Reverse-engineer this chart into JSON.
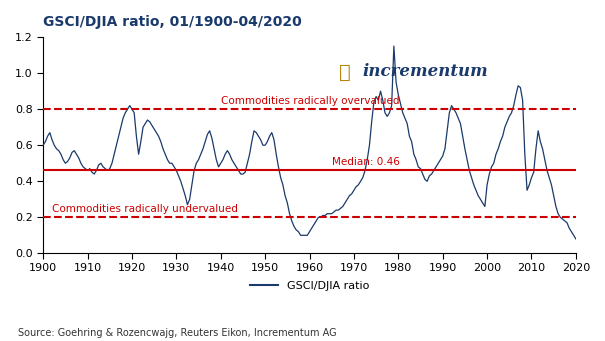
{
  "title": "GSCI/DJIA ratio, 01/1900-04/2020",
  "ylabel": "",
  "xlabel": "",
  "source_text": "Source: Goehring & Rozencwajg, Reuters Eikon, Incrementum AG",
  "legend_label": "GSCI/DJIA ratio",
  "median_value": 0.46,
  "median_label": "Median: 0.46",
  "overvalued_value": 0.8,
  "overvalued_label": "Commodities radically overvalued",
  "undervalued_value": 0.2,
  "undervalued_label": "Commodities radically undervalued",
  "line_color": "#1a3a6b",
  "hline_solid_color": "#cc0000",
  "hline_dashed_color": "#cc0000",
  "label_color": "#cc0000",
  "ylim": [
    0.0,
    1.2
  ],
  "xlim": [
    1900,
    2020
  ],
  "xticks": [
    1900,
    1910,
    1920,
    1930,
    1940,
    1950,
    1960,
    1970,
    1980,
    1990,
    2000,
    2010,
    2020
  ],
  "yticks": [
    0.0,
    0.2,
    0.4,
    0.6,
    0.8,
    1.0,
    1.2
  ],
  "years": [
    1900.0,
    1900.5,
    1901.0,
    1901.5,
    1902.0,
    1902.5,
    1903.0,
    1903.5,
    1904.0,
    1904.5,
    1905.0,
    1905.5,
    1906.0,
    1906.5,
    1907.0,
    1907.5,
    1908.0,
    1908.5,
    1909.0,
    1909.5,
    1910.0,
    1910.5,
    1911.0,
    1911.5,
    1912.0,
    1912.5,
    1913.0,
    1913.5,
    1914.0,
    1914.5,
    1915.0,
    1915.5,
    1916.0,
    1916.5,
    1917.0,
    1917.5,
    1918.0,
    1918.5,
    1919.0,
    1919.5,
    1920.0,
    1920.5,
    1921.0,
    1921.5,
    1922.0,
    1922.5,
    1923.0,
    1923.5,
    1924.0,
    1924.5,
    1925.0,
    1925.5,
    1926.0,
    1926.5,
    1927.0,
    1927.5,
    1928.0,
    1928.5,
    1929.0,
    1929.5,
    1930.0,
    1930.5,
    1931.0,
    1931.5,
    1932.0,
    1932.5,
    1933.0,
    1933.5,
    1934.0,
    1934.5,
    1935.0,
    1935.5,
    1936.0,
    1936.5,
    1937.0,
    1937.5,
    1938.0,
    1938.5,
    1939.0,
    1939.5,
    1940.0,
    1940.5,
    1941.0,
    1941.5,
    1942.0,
    1942.5,
    1943.0,
    1943.5,
    1944.0,
    1944.5,
    1945.0,
    1945.5,
    1946.0,
    1946.5,
    1947.0,
    1947.5,
    1948.0,
    1948.5,
    1949.0,
    1949.5,
    1950.0,
    1950.5,
    1951.0,
    1951.5,
    1952.0,
    1952.5,
    1953.0,
    1953.5,
    1954.0,
    1954.5,
    1955.0,
    1955.5,
    1956.0,
    1956.5,
    1957.0,
    1957.5,
    1958.0,
    1958.5,
    1959.0,
    1959.5,
    1960.0,
    1960.5,
    1961.0,
    1961.5,
    1962.0,
    1962.5,
    1963.0,
    1963.5,
    1964.0,
    1964.5,
    1965.0,
    1965.5,
    1966.0,
    1966.5,
    1967.0,
    1967.5,
    1968.0,
    1968.5,
    1969.0,
    1969.5,
    1970.0,
    1970.5,
    1971.0,
    1971.5,
    1972.0,
    1972.5,
    1973.0,
    1973.5,
    1974.0,
    1974.5,
    1975.0,
    1975.5,
    1976.0,
    1976.5,
    1977.0,
    1977.5,
    1978.0,
    1978.5,
    1979.0,
    1979.5,
    1980.0,
    1980.5,
    1981.0,
    1981.5,
    1982.0,
    1982.5,
    1983.0,
    1983.5,
    1984.0,
    1984.5,
    1985.0,
    1985.5,
    1986.0,
    1986.5,
    1987.0,
    1987.5,
    1988.0,
    1988.5,
    1989.0,
    1989.5,
    1990.0,
    1990.5,
    1991.0,
    1991.5,
    1992.0,
    1992.5,
    1993.0,
    1993.5,
    1994.0,
    1994.5,
    1995.0,
    1995.5,
    1996.0,
    1996.5,
    1997.0,
    1997.5,
    1998.0,
    1998.5,
    1999.0,
    1999.5,
    2000.0,
    2000.5,
    2001.0,
    2001.5,
    2002.0,
    2002.5,
    2003.0,
    2003.5,
    2004.0,
    2004.5,
    2005.0,
    2005.5,
    2006.0,
    2006.5,
    2007.0,
    2007.5,
    2008.0,
    2008.5,
    2009.0,
    2009.5,
    2010.0,
    2010.5,
    2011.0,
    2011.5,
    2012.0,
    2012.5,
    2013.0,
    2013.5,
    2014.0,
    2014.5,
    2015.0,
    2015.5,
    2016.0,
    2016.5,
    2017.0,
    2017.5,
    2018.0,
    2018.5,
    2019.0,
    2019.5,
    2020.0
  ],
  "values": [
    0.6,
    0.62,
    0.65,
    0.67,
    0.63,
    0.6,
    0.58,
    0.57,
    0.55,
    0.52,
    0.5,
    0.51,
    0.53,
    0.56,
    0.57,
    0.55,
    0.53,
    0.5,
    0.48,
    0.47,
    0.46,
    0.47,
    0.45,
    0.44,
    0.46,
    0.49,
    0.5,
    0.48,
    0.47,
    0.46,
    0.47,
    0.5,
    0.55,
    0.6,
    0.65,
    0.7,
    0.75,
    0.78,
    0.8,
    0.82,
    0.8,
    0.78,
    0.65,
    0.55,
    0.62,
    0.7,
    0.72,
    0.74,
    0.73,
    0.71,
    0.69,
    0.67,
    0.65,
    0.62,
    0.58,
    0.55,
    0.52,
    0.5,
    0.5,
    0.48,
    0.46,
    0.43,
    0.4,
    0.36,
    0.32,
    0.27,
    0.3,
    0.38,
    0.46,
    0.5,
    0.52,
    0.55,
    0.58,
    0.62,
    0.66,
    0.68,
    0.64,
    0.58,
    0.52,
    0.48,
    0.5,
    0.52,
    0.55,
    0.57,
    0.55,
    0.52,
    0.5,
    0.48,
    0.46,
    0.44,
    0.44,
    0.45,
    0.5,
    0.55,
    0.62,
    0.68,
    0.67,
    0.65,
    0.63,
    0.6,
    0.6,
    0.62,
    0.65,
    0.67,
    0.63,
    0.55,
    0.48,
    0.42,
    0.38,
    0.32,
    0.28,
    0.22,
    0.18,
    0.15,
    0.13,
    0.12,
    0.1,
    0.1,
    0.1,
    0.1,
    0.12,
    0.14,
    0.16,
    0.18,
    0.2,
    0.2,
    0.21,
    0.21,
    0.22,
    0.22,
    0.22,
    0.23,
    0.24,
    0.24,
    0.25,
    0.26,
    0.28,
    0.3,
    0.32,
    0.33,
    0.35,
    0.37,
    0.38,
    0.4,
    0.42,
    0.46,
    0.52,
    0.6,
    0.73,
    0.84,
    0.87,
    0.85,
    0.9,
    0.85,
    0.78,
    0.76,
    0.78,
    0.82,
    1.15,
    0.95,
    0.88,
    0.83,
    0.78,
    0.75,
    0.72,
    0.65,
    0.62,
    0.55,
    0.52,
    0.48,
    0.47,
    0.44,
    0.41,
    0.4,
    0.43,
    0.44,
    0.46,
    0.48,
    0.5,
    0.52,
    0.54,
    0.58,
    0.68,
    0.78,
    0.82,
    0.8,
    0.78,
    0.75,
    0.72,
    0.65,
    0.58,
    0.52,
    0.46,
    0.42,
    0.38,
    0.35,
    0.32,
    0.3,
    0.28,
    0.26,
    0.38,
    0.44,
    0.48,
    0.5,
    0.55,
    0.58,
    0.62,
    0.65,
    0.7,
    0.73,
    0.76,
    0.78,
    0.82,
    0.88,
    0.93,
    0.92,
    0.85,
    0.55,
    0.35,
    0.38,
    0.42,
    0.45,
    0.58,
    0.68,
    0.62,
    0.58,
    0.52,
    0.46,
    0.42,
    0.38,
    0.32,
    0.26,
    0.22,
    0.2,
    0.19,
    0.18,
    0.17,
    0.14,
    0.12,
    0.1,
    0.08
  ]
}
